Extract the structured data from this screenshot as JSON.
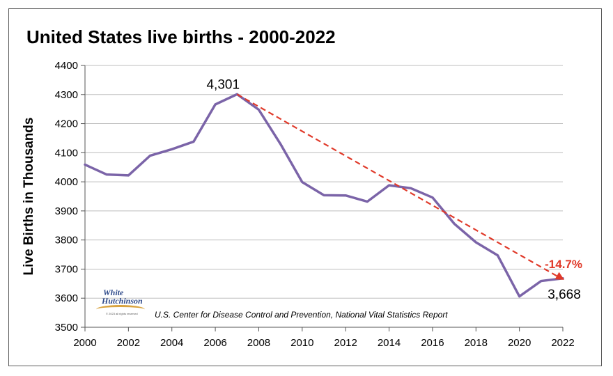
{
  "chart_data": {
    "type": "line",
    "title": "United States live births - 2000-2022",
    "ylabel": "Live Births in Thousands",
    "xlabel": "",
    "x": [
      2000,
      2001,
      2002,
      2003,
      2004,
      2005,
      2006,
      2007,
      2008,
      2009,
      2010,
      2011,
      2012,
      2013,
      2014,
      2015,
      2016,
      2017,
      2018,
      2019,
      2020,
      2021,
      2022
    ],
    "series": [
      {
        "values": [
          4059,
          4025,
          4022,
          4090,
          4112,
          4138,
          4266,
          4301,
          4248,
          4130,
          3999,
          3954,
          3953,
          3932,
          3988,
          3978,
          3946,
          3856,
          3792,
          3747,
          3606,
          3659,
          3668
        ],
        "color": "#7b64a8"
      }
    ],
    "xticks": [
      "2000",
      "2002",
      "2004",
      "2006",
      "2008",
      "2010",
      "2012",
      "2014",
      "2016",
      "2018",
      "2020",
      "2022"
    ],
    "yticks": [
      "3500",
      "3600",
      "3700",
      "3800",
      "3900",
      "4000",
      "4100",
      "4200",
      "4300",
      "4400"
    ],
    "xlim": [
      2000,
      2022
    ],
    "ylim": [
      3500,
      4400
    ],
    "grid": true,
    "trend": {
      "from": [
        2007,
        4301
      ],
      "to": [
        2022,
        3668
      ],
      "color": "#e03a2a",
      "label": "-14.7%"
    },
    "annotations": [
      {
        "text": "4,301",
        "x": 2007,
        "y": 4301
      },
      {
        "text": "3,668",
        "x": 2022,
        "y": 3668
      }
    ],
    "source": "U.S.  Center for Disease Control and Prevention, National Vital Statistics Report"
  },
  "logo": {
    "line1": "White",
    "line2": "Hutchinson",
    "tagline": "© 2023 all rights reserved"
  }
}
